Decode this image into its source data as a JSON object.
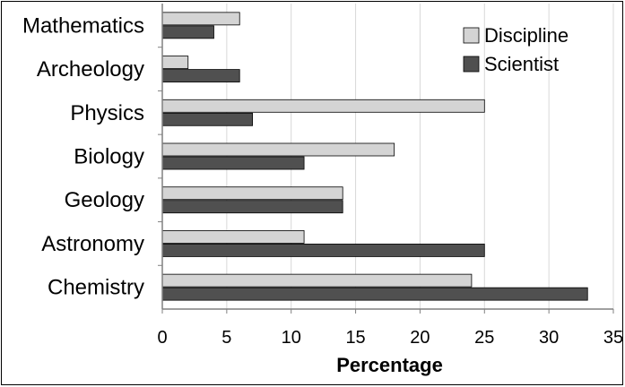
{
  "chart_data": {
    "type": "bar",
    "orientation": "horizontal",
    "categories": [
      "Mathematics",
      "Archeology",
      "Physics",
      "Biology",
      "Geology",
      "Astronomy",
      "Chemistry"
    ],
    "series": [
      {
        "name": "Discipline",
        "values": [
          6,
          2,
          25,
          18,
          14,
          11,
          24
        ],
        "color": "#d4d4d4"
      },
      {
        "name": "Scientist",
        "values": [
          4,
          6,
          7,
          11,
          14,
          25,
          33
        ],
        "color": "#505050"
      }
    ],
    "title": "",
    "xlabel": "Percentage",
    "ylabel": "",
    "xlim": [
      0,
      35
    ],
    "xticks": [
      "0",
      "5",
      "10",
      "15",
      "20",
      "25",
      "30",
      "35"
    ],
    "grid": "vertical",
    "legend_position": "top-right"
  }
}
